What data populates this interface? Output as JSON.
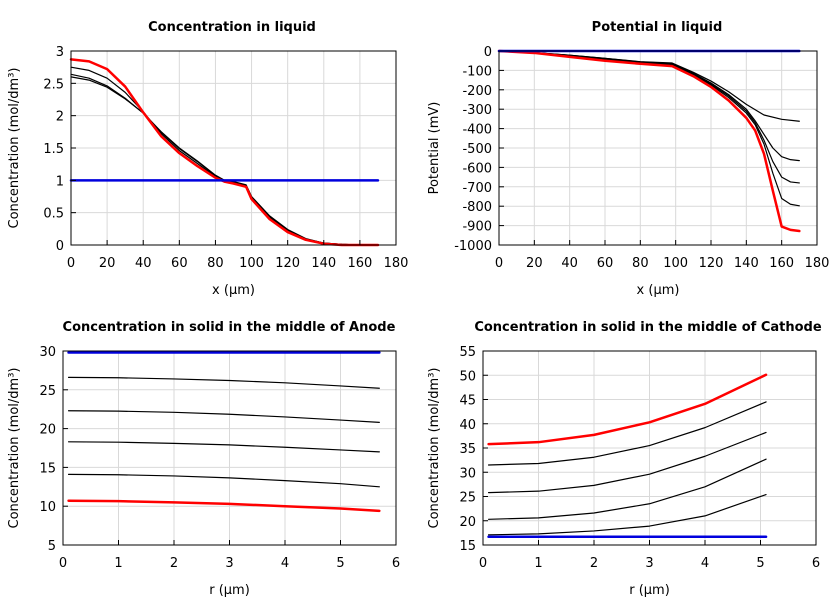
{
  "chart_data": [
    {
      "type": "line",
      "title": "Concentration in liquid",
      "xlabel": "x (µm)",
      "ylabel": "Concentration (mol/dm³)",
      "xlim": [
        0,
        180
      ],
      "ylim": [
        0,
        3
      ],
      "xticks": [
        0,
        20,
        40,
        60,
        80,
        100,
        120,
        140,
        160,
        180
      ],
      "yticks": [
        0,
        0.5,
        1,
        1.5,
        2,
        2.5,
        3
      ],
      "grid": true,
      "series": [
        {
          "color": "#000000",
          "x": [
            0,
            10,
            20,
            30,
            40,
            50,
            60,
            70,
            80,
            85,
            90,
            97,
            100,
            110,
            120,
            130,
            140,
            150,
            160,
            170
          ],
          "y": [
            2.6,
            2.55,
            2.44,
            2.26,
            2.04,
            1.75,
            1.5,
            1.3,
            1.08,
            1.0,
            0.98,
            0.93,
            0.75,
            0.45,
            0.24,
            0.1,
            0.03,
            0.01,
            0.0,
            0.0
          ]
        },
        {
          "color": "#000000",
          "x": [
            0,
            10,
            20,
            30,
            40,
            50,
            60,
            70,
            80,
            85,
            90,
            97,
            100,
            110,
            120,
            130,
            140,
            150,
            160,
            170
          ],
          "y": [
            2.64,
            2.58,
            2.46,
            2.27,
            2.04,
            1.74,
            1.49,
            1.29,
            1.07,
            1.0,
            0.97,
            0.92,
            0.74,
            0.44,
            0.23,
            0.09,
            0.03,
            0.01,
            0.0,
            0.0
          ]
        },
        {
          "color": "#000000",
          "x": [
            0,
            10,
            20,
            30,
            40,
            50,
            60,
            70,
            80,
            85,
            90,
            97,
            100,
            110,
            120,
            130,
            140,
            150,
            160,
            170
          ],
          "y": [
            2.75,
            2.7,
            2.58,
            2.36,
            2.06,
            1.72,
            1.46,
            1.26,
            1.06,
            0.99,
            0.96,
            0.91,
            0.73,
            0.43,
            0.22,
            0.09,
            0.03,
            0.01,
            0.0,
            0.0
          ]
        },
        {
          "color": "#ff0000",
          "width": 2.5,
          "x": [
            0,
            10,
            20,
            30,
            40,
            50,
            60,
            70,
            80,
            85,
            90,
            97,
            100,
            110,
            120,
            130,
            140,
            150,
            160,
            170
          ],
          "y": [
            2.87,
            2.84,
            2.72,
            2.45,
            2.05,
            1.68,
            1.42,
            1.22,
            1.04,
            0.98,
            0.95,
            0.9,
            0.71,
            0.4,
            0.2,
            0.08,
            0.02,
            0.0,
            0.0,
            0.0
          ]
        },
        {
          "color": "#0000dd",
          "width": 2.5,
          "x": [
            0,
            170
          ],
          "y": [
            1.0,
            1.0
          ]
        }
      ]
    },
    {
      "type": "line",
      "title": "Potential in liquid",
      "xlabel": "x (µm)",
      "ylabel": "Potential (mV)",
      "xlim": [
        0,
        180
      ],
      "ylim": [
        -1000,
        0
      ],
      "xticks": [
        0,
        20,
        40,
        60,
        80,
        100,
        120,
        140,
        160,
        180
      ],
      "yticks": [
        0,
        -100,
        -200,
        -300,
        -400,
        -500,
        -600,
        -700,
        -800,
        -900,
        -1000
      ],
      "grid": true,
      "series": [
        {
          "color": "#000000",
          "x": [
            0,
            20,
            40,
            60,
            80,
            98,
            110,
            120,
            130,
            140,
            150,
            160,
            170
          ],
          "y": [
            0,
            -8,
            -22,
            -38,
            -55,
            -62,
            -110,
            -155,
            -210,
            -275,
            -330,
            -352,
            -362
          ]
        },
        {
          "color": "#000000",
          "x": [
            0,
            20,
            40,
            60,
            80,
            98,
            110,
            120,
            130,
            140,
            145,
            150,
            155,
            160,
            165,
            170
          ],
          "y": [
            0,
            -8,
            -22,
            -38,
            -56,
            -64,
            -115,
            -165,
            -225,
            -300,
            -360,
            -430,
            -500,
            -545,
            -560,
            -565
          ]
        },
        {
          "color": "#000000",
          "x": [
            0,
            20,
            40,
            60,
            80,
            98,
            110,
            120,
            130,
            140,
            145,
            150,
            155,
            160,
            165,
            170
          ],
          "y": [
            0,
            -8,
            -23,
            -40,
            -58,
            -67,
            -118,
            -170,
            -232,
            -310,
            -370,
            -460,
            -570,
            -650,
            -675,
            -680
          ]
        },
        {
          "color": "#000000",
          "x": [
            0,
            20,
            40,
            60,
            80,
            98,
            110,
            120,
            130,
            140,
            145,
            150,
            155,
            160,
            165,
            170
          ],
          "y": [
            0,
            -9,
            -24,
            -42,
            -60,
            -70,
            -122,
            -175,
            -240,
            -320,
            -380,
            -480,
            -630,
            -760,
            -790,
            -798
          ]
        },
        {
          "color": "#ff0000",
          "width": 2.5,
          "x": [
            0,
            20,
            40,
            60,
            80,
            98,
            110,
            120,
            130,
            140,
            145,
            150,
            155,
            160,
            165,
            170
          ],
          "y": [
            0,
            -10,
            -30,
            -50,
            -66,
            -78,
            -130,
            -185,
            -255,
            -345,
            -410,
            -530,
            -720,
            -905,
            -922,
            -928
          ]
        },
        {
          "color": "#0000dd",
          "width": 2.5,
          "x": [
            0,
            170
          ],
          "y": [
            0,
            0
          ]
        }
      ]
    },
    {
      "type": "line",
      "title": "Concentration in solid in the middle of Anode",
      "xlabel": "r (µm)",
      "ylabel": "Concentration (mol/dm³)",
      "xlim": [
        0,
        6
      ],
      "ylim": [
        5,
        30
      ],
      "xticks": [
        0,
        1,
        2,
        3,
        4,
        5,
        6
      ],
      "yticks": [
        5,
        10,
        15,
        20,
        25,
        30
      ],
      "grid": true,
      "series": [
        {
          "color": "#000000",
          "x": [
            0.1,
            1,
            2,
            3,
            4,
            5,
            5.7
          ],
          "y": [
            26.6,
            26.55,
            26.4,
            26.2,
            25.9,
            25.5,
            25.2
          ]
        },
        {
          "color": "#000000",
          "x": [
            0.1,
            1,
            2,
            3,
            4,
            5,
            5.7
          ],
          "y": [
            22.3,
            22.25,
            22.1,
            21.85,
            21.5,
            21.1,
            20.8
          ]
        },
        {
          "color": "#000000",
          "x": [
            0.1,
            1,
            2,
            3,
            4,
            5,
            5.7
          ],
          "y": [
            18.3,
            18.25,
            18.1,
            17.9,
            17.6,
            17.25,
            17.0
          ]
        },
        {
          "color": "#000000",
          "x": [
            0.1,
            1,
            2,
            3,
            4,
            5,
            5.7
          ],
          "y": [
            14.1,
            14.05,
            13.9,
            13.65,
            13.3,
            12.9,
            12.5
          ]
        },
        {
          "color": "#ff0000",
          "width": 2.5,
          "x": [
            0.1,
            1,
            2,
            3,
            4,
            5,
            5.7
          ],
          "y": [
            10.7,
            10.65,
            10.5,
            10.3,
            10.0,
            9.7,
            9.4
          ]
        },
        {
          "color": "#0000dd",
          "width": 2.5,
          "x": [
            0.1,
            5.7
          ],
          "y": [
            29.8,
            29.8
          ]
        }
      ]
    },
    {
      "type": "line",
      "title": "Concentration in solid in the middle of Cathode",
      "xlabel": "r (µm)",
      "ylabel": "Concentration (mol/dm³)",
      "xlim": [
        0,
        6
      ],
      "ylim": [
        15,
        55
      ],
      "xticks": [
        0,
        1,
        2,
        3,
        4,
        5,
        6
      ],
      "yticks": [
        15,
        20,
        25,
        30,
        35,
        40,
        45,
        50,
        55
      ],
      "grid": true,
      "series": [
        {
          "color": "#000000",
          "x": [
            0.1,
            1,
            2,
            3,
            4,
            5.1
          ],
          "y": [
            17.1,
            17.3,
            17.9,
            18.9,
            21.0,
            25.4
          ]
        },
        {
          "color": "#000000",
          "x": [
            0.1,
            1,
            2,
            3,
            4,
            5.1
          ],
          "y": [
            20.3,
            20.6,
            21.6,
            23.5,
            27.0,
            32.7
          ]
        },
        {
          "color": "#000000",
          "x": [
            0.1,
            1,
            2,
            3,
            4,
            5.1
          ],
          "y": [
            25.8,
            26.1,
            27.3,
            29.6,
            33.3,
            38.2
          ]
        },
        {
          "color": "#000000",
          "x": [
            0.1,
            1,
            2,
            3,
            4,
            5.1
          ],
          "y": [
            31.5,
            31.8,
            33.1,
            35.5,
            39.2,
            44.5
          ]
        },
        {
          "color": "#ff0000",
          "width": 2.5,
          "x": [
            0.1,
            1,
            2,
            3,
            4,
            5.1
          ],
          "y": [
            35.8,
            36.2,
            37.7,
            40.3,
            44.1,
            50.1
          ]
        },
        {
          "color": "#0000dd",
          "width": 2.5,
          "x": [
            0.1,
            5.1
          ],
          "y": [
            16.7,
            16.7
          ]
        }
      ]
    }
  ]
}
